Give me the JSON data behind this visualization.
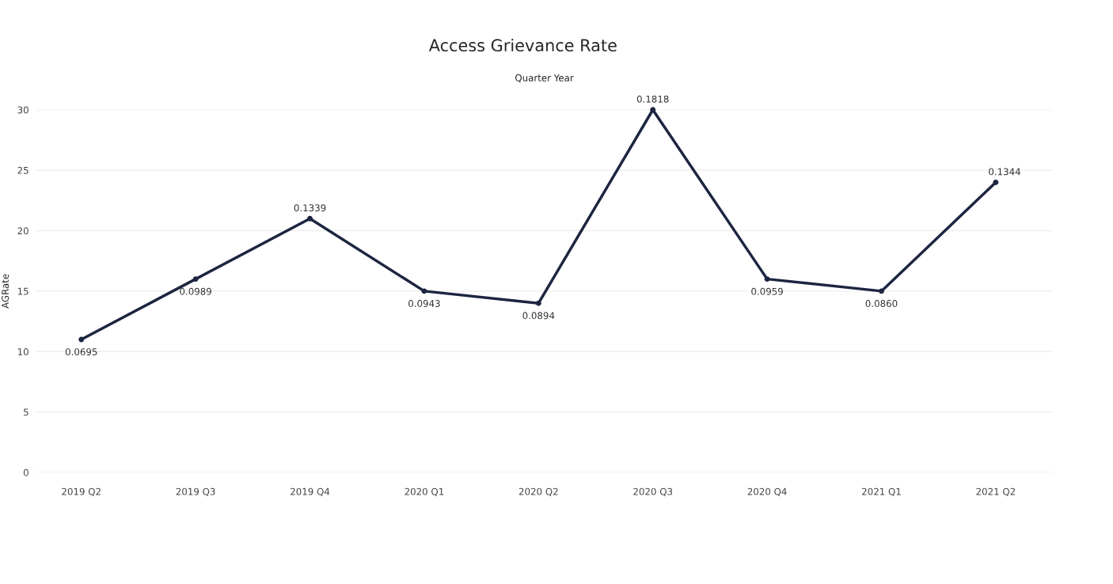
{
  "chart_data": {
    "type": "line",
    "title": "Access Grievance Rate",
    "xlabel": "Quarter Year",
    "ylabel": "AGRate",
    "categories": [
      "2019 Q2",
      "2019 Q3",
      "2019 Q4",
      "2020 Q1",
      "2020 Q2",
      "2020 Q3",
      "2020 Q4",
      "2021 Q1",
      "2021 Q2"
    ],
    "series": [
      {
        "color": "#1c2541",
        "values": [
          11,
          16,
          21,
          15,
          14,
          30,
          16,
          15,
          24
        ]
      }
    ],
    "annotations": [
      {
        "text": "0.0695",
        "x": "2019 Q2",
        "y": 11
      },
      {
        "text": "0.0989",
        "x": "2019 Q3",
        "y": 16
      },
      {
        "text": "0.1339",
        "x": "2019 Q4",
        "y": 21
      },
      {
        "text": "0.0943",
        "x": "2020 Q1",
        "y": 15
      },
      {
        "text": "0.0894",
        "x": "2020 Q2",
        "y": 14
      },
      {
        "text": "0.1818",
        "x": "2020 Q3",
        "y": 30
      },
      {
        "text": "0.0959",
        "x": "2020 Q4",
        "y": 16
      },
      {
        "text": "0.0860",
        "x": "2021 Q1",
        "y": 15
      },
      {
        "text": "0.1344",
        "x": "2021 Q2",
        "y": 24
      }
    ],
    "ylim": [
      0,
      30
    ],
    "yticks": [
      0,
      5,
      10,
      15,
      20,
      25,
      30
    ],
    "grid": "y",
    "marker": "circle",
    "line_style": "solid"
  }
}
